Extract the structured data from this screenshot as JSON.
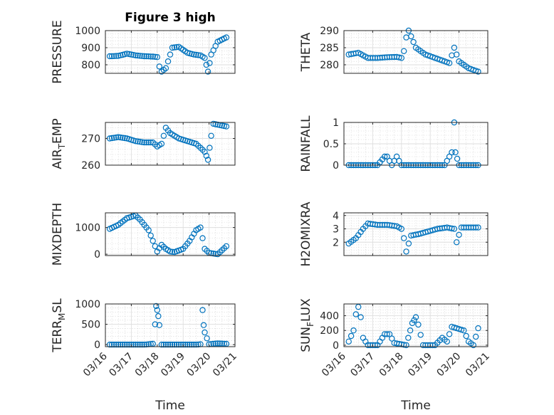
{
  "chart_data": [
    {
      "type": "scatter",
      "title": "Figure 3 high",
      "ylabel": "PRESSURE",
      "ylabel_sub": null,
      "ylim": [
        750,
        1000
      ],
      "yticks": [
        800,
        900,
        1000
      ],
      "yticklabels": [
        "800",
        "900",
        "1000"
      ],
      "grid": true,
      "x": [
        "03/16 04:00",
        "03/16 12:00",
        "03/16 20:00",
        "03/17 04:00",
        "03/17 12:00",
        "03/17 20:00",
        "03/18 00:00",
        "03/18 02:00",
        "03/18 04:00",
        "03/18 08:00",
        "03/18 14:00",
        "03/18 20:00",
        "03/19 04:00",
        "03/19 10:00",
        "03/19 16:00",
        "03/19 20:00",
        "03/19 23:00",
        "03/20 02:00",
        "03/20 08:00",
        "03/20 16:00"
      ],
      "values": [
        850,
        852,
        865,
        855,
        850,
        848,
        845,
        790,
        760,
        780,
        900,
        905,
        870,
        860,
        855,
        840,
        760,
        860,
        935,
        960
      ]
    },
    {
      "type": "scatter",
      "title": "",
      "ylabel": "THETA",
      "ylabel_sub": null,
      "ylim": [
        277.5,
        290
      ],
      "yticks": [
        280,
        285,
        290
      ],
      "yticklabels": [
        "280",
        "285",
        "290"
      ],
      "grid": true,
      "x": [
        "03/16 04:00",
        "03/16 12:00",
        "03/16 20:00",
        "03/17 04:00",
        "03/17 12:00",
        "03/17 20:00",
        "03/18 00:00",
        "03/18 02:00",
        "03/18 04:00",
        "03/18 06:00",
        "03/18 12:00",
        "03/18 20:00",
        "03/19 04:00",
        "03/19 12:00",
        "03/19 16:00",
        "03/19 20:00",
        "03/20 00:00",
        "03/20 08:00",
        "03/20 16:00"
      ],
      "values": [
        283,
        283.5,
        282,
        282,
        282.2,
        282.3,
        282,
        284,
        288,
        290,
        285,
        283,
        282,
        281,
        280.5,
        285,
        281,
        279,
        278
      ]
    },
    {
      "type": "scatter",
      "title": "",
      "ylabel": "AIR",
      "ylabel_sub": "T",
      "ylabel_tail": "EMP",
      "ylim": [
        260,
        276
      ],
      "yticks": [
        260,
        270
      ],
      "yticklabels": [
        "260",
        "270"
      ],
      "grid": true,
      "x": [
        "03/16 04:00",
        "03/16 12:00",
        "03/16 20:00",
        "03/17 04:00",
        "03/17 12:00",
        "03/17 20:00",
        "03/18 00:00",
        "03/18 04:00",
        "03/18 08:00",
        "03/18 12:00",
        "03/18 20:00",
        "03/19 04:00",
        "03/19 12:00",
        "03/19 20:00",
        "03/19 23:00",
        "03/20 02:00",
        "03/20 04:00",
        "03/20 10:00",
        "03/20 16:00"
      ],
      "values": [
        270,
        270.5,
        270,
        269,
        268.5,
        268.5,
        267,
        268,
        274,
        272,
        270,
        269,
        268,
        265,
        262,
        271,
        275.5,
        275,
        274.5
      ]
    },
    {
      "type": "scatter",
      "title": "",
      "ylabel": "RAINFALL",
      "ylabel_sub": null,
      "ylim": [
        0,
        1
      ],
      "yticks": [
        0,
        0.5,
        1
      ],
      "yticklabels": [
        "0",
        "0.5",
        "1"
      ],
      "grid": true,
      "x": [
        "03/16 04:00",
        "03/16 12:00",
        "03/16 20:00",
        "03/17 04:00",
        "03/17 10:00",
        "03/17 12:00",
        "03/17 16:00",
        "03/17 20:00",
        "03/18 00:00",
        "03/18 04:00",
        "03/18 12:00",
        "03/18 20:00",
        "03/19 04:00",
        "03/19 12:00",
        "03/19 18:00",
        "03/19 20:00",
        "03/19 21:00",
        "03/20 00:00",
        "03/20 08:00",
        "03/20 16:00"
      ],
      "values": [
        0,
        0,
        0,
        0,
        0.2,
        0.2,
        0,
        0.2,
        0,
        0,
        0,
        0,
        0,
        0,
        0.3,
        1.0,
        0.3,
        0,
        0,
        0
      ]
    },
    {
      "type": "scatter",
      "title": "",
      "ylabel": "MIXDEPTH",
      "ylabel_sub": null,
      "ylim": [
        -50,
        1550
      ],
      "yticks": [
        0,
        1000
      ],
      "yticklabels": [
        "0",
        "1000"
      ],
      "grid": true,
      "x": [
        "03/16 04:00",
        "03/16 12:00",
        "03/16 20:00",
        "03/17 04:00",
        "03/17 08:00",
        "03/17 16:00",
        "03/17 22:00",
        "03/18 00:00",
        "03/18 04:00",
        "03/18 08:00",
        "03/18 12:00",
        "03/18 16:00",
        "03/19 00:00",
        "03/19 06:00",
        "03/19 12:00",
        "03/19 16:00",
        "03/19 20:00",
        "03/20 00:00",
        "03/20 08:00",
        "03/20 16:00"
      ],
      "values": [
        950,
        1100,
        1350,
        1450,
        1300,
        900,
        300,
        100,
        350,
        200,
        100,
        80,
        200,
        500,
        900,
        1000,
        200,
        50,
        0,
        300
      ]
    },
    {
      "type": "scatter",
      "title": "",
      "ylabel": "H2OMIXRA",
      "ylabel_sub": null,
      "ylim": [
        1,
        4.2
      ],
      "yticks": [
        2,
        3,
        4
      ],
      "yticklabels": [
        "2",
        "3",
        "4"
      ],
      "grid": true,
      "x": [
        "03/16 04:00",
        "03/16 10:00",
        "03/16 16:00",
        "03/16 20:00",
        "03/17 04:00",
        "03/17 12:00",
        "03/17 20:00",
        "03/18 00:00",
        "03/18 02:00",
        "03/18 04:00",
        "03/18 08:00",
        "03/18 14:00",
        "03/18 22:00",
        "03/19 06:00",
        "03/19 14:00",
        "03/19 20:00",
        "03/19 22:00",
        "03/20 02:00",
        "03/20 10:00",
        "03/20 16:00"
      ],
      "values": [
        1.9,
        2.3,
        3.0,
        3.4,
        3.3,
        3.3,
        3.2,
        3.0,
        2.3,
        1.3,
        2.5,
        2.6,
        2.8,
        3.0,
        3.1,
        3.0,
        2.0,
        3.1,
        3.1,
        3.1
      ]
    },
    {
      "type": "scatter",
      "title": "",
      "ylabel": "TERR",
      "ylabel_sub": "M",
      "ylabel_tail": "SL",
      "ylim": [
        -50,
        1000
      ],
      "yticks": [
        0,
        500,
        1000
      ],
      "yticklabels": [
        "0",
        "500",
        "1000"
      ],
      "grid": true,
      "xlabel": "Time",
      "xticks": [
        "03/16",
        "03/17",
        "03/18",
        "03/19",
        "03/20",
        "03/21"
      ],
      "x": [
        "03/16 04:00",
        "03/16 12:00",
        "03/17 00:00",
        "03/17 12:00",
        "03/17 20:00",
        "03/17 22:00",
        "03/17 23:00",
        "03/18 00:00",
        "03/18 01:00",
        "03/18 02:00",
        "03/18 04:00",
        "03/18 12:00",
        "03/19 00:00",
        "03/19 12:00",
        "03/19 16:00",
        "03/19 18:00",
        "03/19 19:00",
        "03/19 20:00",
        "03/20 00:00",
        "03/20 08:00",
        "03/20 16:00"
      ],
      "values": [
        0,
        0,
        0,
        0,
        20,
        500,
        950,
        850,
        700,
        480,
        0,
        0,
        0,
        0,
        10,
        850,
        480,
        300,
        10,
        30,
        20
      ]
    },
    {
      "type": "scatter",
      "title": "",
      "ylabel": "SUN",
      "ylabel_sub": "F",
      "ylabel_tail": "LUX",
      "ylim": [
        -20,
        560
      ],
      "yticks": [
        0,
        200,
        400
      ],
      "yticklabels": [
        "0",
        "200",
        "400"
      ],
      "grid": true,
      "xlabel": "Time",
      "xticks": [
        "03/16",
        "03/17",
        "03/18",
        "03/19",
        "03/20",
        "03/21"
      ],
      "x": [
        "03/16 04:00",
        "03/16 08:00",
        "03/16 10:00",
        "03/16 12:00",
        "03/16 14:00",
        "03/16 16:00",
        "03/16 20:00",
        "03/17 04:00",
        "03/17 10:00",
        "03/17 14:00",
        "03/17 18:00",
        "03/18 04:00",
        "03/18 09:00",
        "03/18 12:00",
        "03/18 14:00",
        "03/18 18:00",
        "03/19 04:00",
        "03/19 10:00",
        "03/19 14:00",
        "03/19 18:00",
        "03/20 04:00",
        "03/20 08:00",
        "03/20 12:00",
        "03/20 16:00"
      ],
      "values": [
        50,
        200,
        420,
        520,
        380,
        100,
        0,
        0,
        150,
        150,
        30,
        0,
        300,
        380,
        280,
        0,
        0,
        100,
        50,
        250,
        200,
        50,
        0,
        230
      ]
    }
  ]
}
